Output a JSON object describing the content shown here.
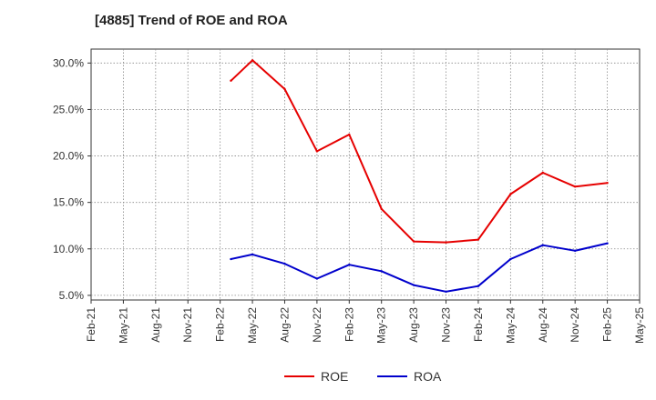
{
  "chart_data": {
    "type": "line",
    "title": "[4885]  Trend of ROE and ROA",
    "xlabel": "",
    "ylabel": "",
    "categories": [
      "Feb-21",
      "May-21",
      "Aug-21",
      "Nov-21",
      "Feb-22",
      "May-22",
      "Aug-22",
      "Nov-22",
      "Feb-23",
      "May-23",
      "Aug-23",
      "Nov-23",
      "Feb-24",
      "May-24",
      "Aug-24",
      "Nov-24",
      "Feb-25",
      "May-25"
    ],
    "y_tick_labels": [
      "5.0%",
      "10.0%",
      "15.0%",
      "20.0%",
      "25.0%",
      "30.0%"
    ],
    "ylim": [
      4.5,
      31.5
    ],
    "y_ticks": [
      5,
      10,
      15,
      20,
      25,
      30
    ],
    "grid": true,
    "legend_position": "bottom-center",
    "series": [
      {
        "name": "ROE",
        "color": "#e60000",
        "points": [
          {
            "x": "Mar-22",
            "y": 28.1
          },
          {
            "x": "May-22",
            "y": 30.3
          },
          {
            "x": "Aug-22",
            "y": 27.2
          },
          {
            "x": "Nov-22",
            "y": 20.5
          },
          {
            "x": "Feb-23",
            "y": 22.3
          },
          {
            "x": "May-23",
            "y": 14.3
          },
          {
            "x": "Aug-23",
            "y": 10.8
          },
          {
            "x": "Nov-23",
            "y": 10.7
          },
          {
            "x": "Feb-24",
            "y": 11.0
          },
          {
            "x": "May-24",
            "y": 15.9
          },
          {
            "x": "Aug-24",
            "y": 18.2
          },
          {
            "x": "Nov-24",
            "y": 16.7
          },
          {
            "x": "Feb-25",
            "y": 17.1
          }
        ]
      },
      {
        "name": "ROA",
        "color": "#0000cc",
        "points": [
          {
            "x": "Mar-22",
            "y": 8.9
          },
          {
            "x": "May-22",
            "y": 9.4
          },
          {
            "x": "Aug-22",
            "y": 8.4
          },
          {
            "x": "Nov-22",
            "y": 6.8
          },
          {
            "x": "Feb-23",
            "y": 8.3
          },
          {
            "x": "May-23",
            "y": 7.6
          },
          {
            "x": "Aug-23",
            "y": 6.1
          },
          {
            "x": "Nov-23",
            "y": 5.4
          },
          {
            "x": "Feb-24",
            "y": 6.0
          },
          {
            "x": "May-24",
            "y": 8.9
          },
          {
            "x": "Aug-24",
            "y": 10.4
          },
          {
            "x": "Nov-24",
            "y": 9.8
          },
          {
            "x": "Feb-25",
            "y": 10.6
          }
        ]
      }
    ]
  }
}
